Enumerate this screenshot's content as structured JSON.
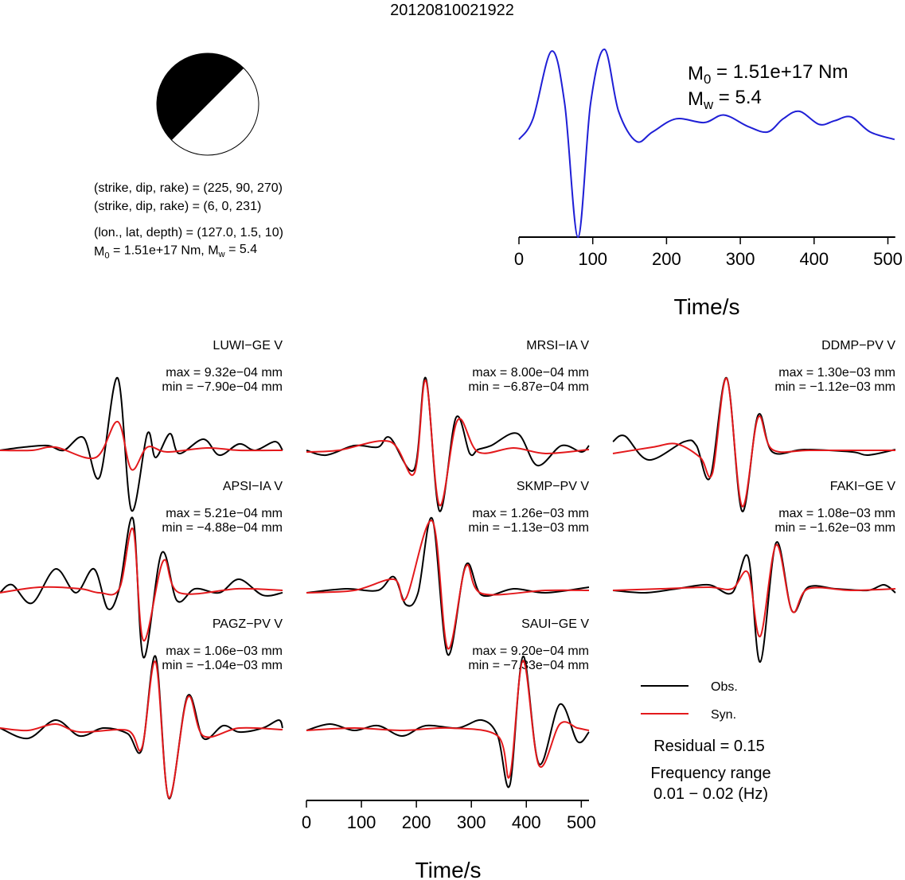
{
  "title": "20120810021922",
  "mechanism": {
    "lines": [
      [
        {
          "text": "(strike, dip, rake) = (225, 90, 270)"
        }
      ],
      [
        {
          "text": "(strike, dip, rake) = (6, 0, 231)"
        }
      ],
      [
        {
          "text": "(lon., lat, depth) = (127.0, 1.5, 10)"
        }
      ],
      [
        {
          "text": "M"
        },
        {
          "sub": "0"
        },
        {
          "text": " = 1.51e+17 Nm, M"
        },
        {
          "sub": "w"
        },
        {
          "text": " = 5.4"
        }
      ]
    ]
  },
  "chart_data": [
    {
      "type": "line",
      "color": "#1f1fd6",
      "annotations": [
        [
          {
            "text": "M"
          },
          {
            "sub": "0"
          },
          {
            "text": " = 1.51e+17 Nm"
          }
        ],
        [
          {
            "text": "M"
          },
          {
            "sub": "w"
          },
          {
            "text": " = 5.4"
          }
        ]
      ],
      "x": [
        0,
        19,
        44,
        62,
        80,
        97,
        116,
        135,
        159,
        181,
        213,
        251,
        278,
        310,
        337,
        358,
        380,
        407,
        428,
        450,
        476,
        509
      ],
      "values": [
        0.52,
        0.63,
        0.99,
        0.71,
        0,
        0.71,
        1.0,
        0.67,
        0.51,
        0.56,
        0.63,
        0.61,
        0.65,
        0.59,
        0.56,
        0.63,
        0.67,
        0.6,
        0.62,
        0.64,
        0.56,
        0.52
      ],
      "xlim": [
        0,
        510
      ],
      "ylim": [
        0,
        1
      ],
      "xticks": [
        0,
        100,
        200,
        300,
        400,
        500
      ],
      "xlabel": "Time/s"
    },
    {
      "type": "waveform",
      "legend": [
        {
          "name": "Obs.",
          "color": "#000000"
        },
        {
          "name": "Syn.",
          "color": "#e3191c"
        }
      ],
      "xlim": [
        0,
        514
      ],
      "xticks": [
        0,
        100,
        200,
        300,
        400,
        500
      ],
      "xlabel": "Time/s",
      "residual": "Residual = 0.15",
      "frequency": [
        "Frequency range",
        "0.01 − 0.02 (Hz)"
      ],
      "panels": [
        {
          "title": "LUWI−GE V",
          "max_label": "max = 9.32e−04 mm",
          "min_label": "min = −7.90e−04 mm",
          "series": [
            {
              "x": [
                0,
                43,
                87,
                116,
                152,
                181,
                214,
                239,
                268,
                283,
                309,
                326,
                370,
                399,
                435,
                464,
                500,
                514
              ],
              "values": [
                -1e-05,
                3.1e-05,
                5.2e-05,
                -1e-05,
                0.000155,
                -0.000363,
                0.000932,
                -0.00079,
                0.000207,
                -0.000104,
                0.000207,
                -5.2e-05,
                0.000135,
                -7.3e-05,
                7.3e-05,
                -1e-05,
                0.000104,
                -1e-05
              ]
            },
            {
              "x": [
                0,
                58,
                101,
                174,
                214,
                239,
                268,
                304,
                377,
                435,
                514
              ],
              "values": [
                -1e-05,
                -1e-05,
                3.1e-05,
                -0.000104,
                0.000363,
                -0.000259,
                3.1e-05,
                -3.1e-05,
                2.1e-05,
                -1e-05,
                -1e-05
              ]
            }
          ]
        },
        {
          "title": "MRSI−IA V",
          "max_label": "max = 8.00e−04 mm",
          "min_label": "min = −6.87e−04 mm",
          "series": [
            {
              "x": [
                0,
                36,
                87,
                130,
                152,
                196,
                217,
                242,
                272,
                297,
                312,
                336,
                384,
                420,
                464,
                500,
                514
              ],
              "values": [
                -9e-06,
                -6.2e-05,
                4.4e-05,
                2.7e-05,
                0.000133,
                -0.000222,
                0.0008,
                -0.000687,
                0.000356,
                -4.4e-05,
                0,
                4.4e-05,
                0.000178,
                -0.000178,
                4.4e-05,
                -2.7e-05,
                4.4e-05
              ]
            },
            {
              "x": [
                0,
                58,
                152,
                196,
                217,
                242,
                275,
                312,
                377,
                435,
                514
              ],
              "values": [
                -2.7e-05,
                -9e-06,
                8.9e-05,
                -0.000267,
                0.000773,
                -0.000622,
                0.000329,
                -2.7e-05,
                1.8e-05,
                -4.4e-05,
                0
              ]
            }
          ]
        },
        {
          "title": "DDMP−PV V",
          "max_label": "max = 1.30e−03 mm",
          "min_label": "min = −1.12e−03 mm",
          "series": [
            {
              "x": [
                0,
                22,
                65,
                130,
                152,
                177,
                207,
                235,
                264,
                290,
                348,
                435,
                464,
                514
              ],
              "values": [
                0.000144,
                0.000246,
                -0.000188,
                0.000144,
                7.2e-05,
                -0.000505,
                0.0013,
                -0.00112,
                0.000621,
                -4.3e-05,
                0,
                -4.3e-05,
                -0.000101,
                0
              ]
            },
            {
              "x": [
                0,
                72,
                116,
                159,
                181,
                207,
                235,
                264,
                290,
                362,
                514
              ],
              "values": [
                -7.2e-05,
                4.3e-05,
                0.000101,
                -0.000144,
                -0.000433,
                0.00129,
                -0.00103,
                0.000578,
                0,
                -1.4e-05,
                -1.4e-05
              ]
            }
          ]
        },
        {
          "title": "APSI−IA V",
          "max_label": "max = 5.21e−04 mm",
          "min_label": "min = −4.88e−04 mm",
          "series": [
            {
              "x": [
                0,
                22,
                58,
                101,
                138,
                171,
                196,
                217,
                242,
                261,
                294,
                322,
                355,
                399,
                435,
                478,
                514
              ],
              "values": [
                -1.7e-05,
                4.1e-05,
                -9.3e-05,
                0.000156,
                -1.7e-05,
                0.000156,
                -0.000133,
                1.2e-05,
                0.000521,
                -0.000488,
                0.000272,
                -7.5e-05,
                1.2e-05,
                -1.7e-05,
                8.1e-05,
                -3.5e-05,
                -1.7e-05
              ]
            },
            {
              "x": [
                0,
                72,
                145,
                181,
                217,
                242,
                261,
                297,
                326,
                435,
                514
              ],
              "values": [
                -1.7e-05,
                2.3e-05,
                1.2e-05,
                -1.7e-05,
                1.2e-05,
                0.000446,
                -0.000365,
                0.000214,
                -1.7e-05,
                1.2e-05,
                0
              ]
            }
          ]
        },
        {
          "title": "SKMP−PV V",
          "max_label": "max = 1.26e−03 mm",
          "min_label": "min = −1.13e−03 mm",
          "series": [
            {
              "x": [
                0,
                72,
                130,
                159,
                181,
                203,
                229,
                257,
                290,
                319,
                377,
                435,
                514
              ],
              "values": [
                -4.2e-05,
                2.8e-05,
                0,
                0.000238,
                -0.000252,
                -4.2e-05,
                0.00126,
                -0.00113,
                0.000448,
                -8.4e-05,
                2.8e-05,
                -4.2e-05,
                5.6e-05
              ]
            },
            {
              "x": [
                0,
                87,
                159,
                181,
                229,
                257,
                290,
                319,
                435,
                514
              ],
              "values": [
                -4.2e-05,
                0,
                0.000196,
                -0.00014,
                0.00122,
                -0.00102,
                0.00042,
                -5.6e-05,
                0,
                0
              ]
            }
          ]
        },
        {
          "title": "FAKI−GE V",
          "max_label": "max = 1.08e−03 mm",
          "min_label": "min = −1.62e−03 mm",
          "series": [
            {
              "x": [
                0,
                58,
                116,
                174,
                217,
                246,
                268,
                297,
                326,
                355,
                406,
                464,
                493,
                514
              ],
              "values": [
                0,
                -5.4e-05,
                3.6e-05,
                0.000126,
                -5.4e-05,
                0.000756,
                -0.00162,
                0.00108,
                -0.000468,
                7.2e-05,
                3.6e-05,
                0,
                0.000126,
                -5.4e-05
              ]
            },
            {
              "x": [
                0,
                87,
                174,
                217,
                246,
                268,
                297,
                326,
                355,
                435,
                514
              ],
              "values": [
                0,
                3.6e-05,
                7.2e-05,
                3.6e-05,
                0.000396,
                -0.00104,
                0.00103,
                -0.000468,
                3.6e-05,
                0,
                3.6e-05
              ]
            }
          ]
        },
        {
          "title": "PAGZ−PV V",
          "max_label": "max = 1.06e−03 mm",
          "min_label": "min = −1.04e−03 mm",
          "series": [
            {
              "x": [
                0,
                51,
                101,
                145,
                188,
                232,
                258,
                283,
                307,
                341,
                370,
                406,
                435,
                478,
                507,
                514
              ],
              "values": [
                0,
                -0.000153,
                0.000118,
                -0.000118,
                0,
                -8.3e-05,
                -0.000318,
                0.00106,
                -0.00104,
                0.000472,
                -0.000153,
                3.5e-05,
                -5.9e-05,
                0,
                0.000118,
                0
              ]
            },
            {
              "x": [
                0,
                51,
                101,
                145,
                232,
                258,
                283,
                307,
                341,
                370,
                435,
                514
              ],
              "values": [
                0,
                -3.5e-05,
                5.9e-05,
                -5.9e-05,
                -3.5e-05,
                -0.000295,
                0.000979,
                -0.00103,
                0.000448,
                -0.000118,
                0,
                -2.4e-05
              ]
            }
          ]
        },
        {
          "title": "SAUI−GE V",
          "max_label": "max = 9.20e−04 mm",
          "min_label": "min = −7.33e−04 mm",
          "series": [
            {
              "x": [
                0,
                43,
                87,
                130,
                174,
                217,
                275,
                319,
                348,
                370,
                394,
                423,
                461,
                493,
                514
              ],
              "values": [
                -3.1e-05,
                5.1e-05,
                -3.1e-05,
                3.1e-05,
                -0.000102,
                3.1e-05,
                0,
                0.000102,
                -0.000102,
                -0.000733,
                0.00092,
                -0.00046,
                0.000306,
                -0.000173,
                -5.1e-05
              ]
            },
            {
              "x": [
                0,
                87,
                174,
                261,
                348,
                370,
                394,
                423,
                461,
                493,
                514
              ],
              "values": [
                -3.1e-05,
                0,
                -3.1e-05,
                0,
                -0.000102,
                -0.000612,
                0.000867,
                -0.00048,
                5.1e-05,
                0,
                -3.1e-05
              ]
            }
          ]
        }
      ]
    }
  ]
}
